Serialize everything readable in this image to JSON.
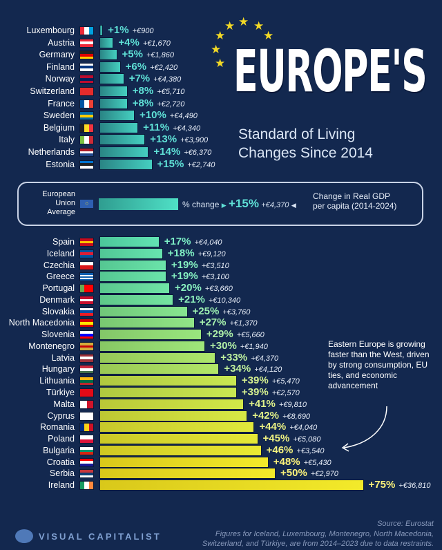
{
  "title": {
    "main": "EUROPE'S",
    "line1": "Standard of Living",
    "line2": "Changes Since 2014"
  },
  "eu_average": {
    "label_lines": [
      "European",
      "Union",
      "Average"
    ],
    "pct_label": "% change",
    "pct": 15,
    "pct_text": "+15%",
    "eur": "+€4,370",
    "legend_lines": [
      "Change in Real GDP",
      "per capita (2014-2024)"
    ],
    "flag_color": "#2e5fb0"
  },
  "note": "Eastern Europe is growing faster than the West, driven by strong consumption, EU ties, and economic advancement",
  "source": "Source: Eurostat",
  "footnote_lines": [
    "Figures for Iceland, Luxembourg, Montenegro, North Macedonia,",
    "Switzerland, and Türkiye, are from 2014–2023 due to data restraints."
  ],
  "brand": "VISUAL CAPITALIST",
  "chart_data": {
    "type": "bar",
    "orientation": "horizontal",
    "title": "Europe's Standard of Living Changes Since 2014",
    "xlabel": "% change in Real GDP per capita (2014-2024)",
    "groups": [
      {
        "name": "below_eu",
        "rows": [
          {
            "country": "Luxembourg",
            "pct": 1,
            "eur": "+€900",
            "flag": [
              "v",
              "#ed2939",
              "#ffffff",
              "#00a1de"
            ]
          },
          {
            "country": "Austria",
            "pct": 4,
            "eur": "+€1,670",
            "flag": [
              "h",
              "#ed2939",
              "#ffffff",
              "#ed2939"
            ]
          },
          {
            "country": "Germany",
            "pct": 5,
            "eur": "+€1,860",
            "flag": [
              "h",
              "#222222",
              "#dd0000",
              "#ffce00"
            ]
          },
          {
            "country": "Finland",
            "pct": 6,
            "eur": "+€2,420",
            "flag": [
              "h",
              "#ffffff",
              "#003580",
              "#ffffff"
            ]
          },
          {
            "country": "Norway",
            "pct": 7,
            "eur": "+€4,380",
            "flag": [
              "h",
              "#ba0c2f",
              "#00205b",
              "#ba0c2f"
            ]
          },
          {
            "country": "Switzerland",
            "pct": 8,
            "eur": "+€5,710",
            "flag": [
              "h",
              "#e52b2b"
            ]
          },
          {
            "country": "France",
            "pct": 8,
            "eur": "+€2,720",
            "flag": [
              "v",
              "#0055a4",
              "#ffffff",
              "#ef4135"
            ]
          },
          {
            "country": "Sweden",
            "pct": 10,
            "eur": "+€4,490",
            "flag": [
              "h",
              "#006aa7",
              "#fecc00",
              "#006aa7"
            ]
          },
          {
            "country": "Belgium",
            "pct": 11,
            "eur": "+€4,340",
            "flag": [
              "v",
              "#222222",
              "#fdda24",
              "#ef3340"
            ]
          },
          {
            "country": "Italy",
            "pct": 13,
            "eur": "+€3,900",
            "flag": [
              "v",
              "#7cc242",
              "#ffffff",
              "#ce2b37"
            ]
          },
          {
            "country": "Netherlands",
            "pct": 14,
            "eur": "+€6,370",
            "flag": [
              "h",
              "#ae1c28",
              "#ffffff",
              "#21468b"
            ]
          },
          {
            "country": "Estonia",
            "pct": 15,
            "eur": "+€2,740",
            "flag": [
              "h",
              "#0072ce",
              "#222222",
              "#ffffff"
            ]
          }
        ]
      },
      {
        "name": "above_eu",
        "rows": [
          {
            "country": "Spain",
            "pct": 17,
            "eur": "+€4,040",
            "flag": [
              "h",
              "#c60b1e",
              "#ffc400",
              "#c60b1e"
            ]
          },
          {
            "country": "Iceland",
            "pct": 18,
            "eur": "+€9,120",
            "flag": [
              "h",
              "#02529c",
              "#dc1e35",
              "#02529c"
            ]
          },
          {
            "country": "Czechia",
            "pct": 19,
            "eur": "+€3,510",
            "flag": [
              "h",
              "#ffffff",
              "#d7141a"
            ]
          },
          {
            "country": "Greece",
            "pct": 19,
            "eur": "+€3,100",
            "flag": [
              "h",
              "#0d5eaf",
              "#ffffff",
              "#0d5eaf",
              "#ffffff",
              "#0d5eaf"
            ]
          },
          {
            "country": "Portugal",
            "pct": 20,
            "eur": "+€3,660",
            "flag": [
              "v",
              "#6aa84f",
              "#ff0000",
              "#ff0000"
            ]
          },
          {
            "country": "Denmark",
            "pct": 21,
            "eur": "+€10,340",
            "flag": [
              "h",
              "#c8102e",
              "#ffffff",
              "#c8102e"
            ]
          },
          {
            "country": "Slovakia",
            "pct": 25,
            "eur": "+€3,760",
            "flag": [
              "h",
              "#ffffff",
              "#0b4ea2",
              "#ee1c25"
            ]
          },
          {
            "country": "North Macedonia",
            "pct": 27,
            "eur": "+€1,370",
            "flag": [
              "h",
              "#d20000",
              "#ffe600",
              "#d20000"
            ]
          },
          {
            "country": "Slovenia",
            "pct": 29,
            "eur": "+€5,660",
            "flag": [
              "h",
              "#ffffff",
              "#0000ff",
              "#ff0000"
            ]
          },
          {
            "country": "Montenegro",
            "pct": 30,
            "eur": "+€1,940",
            "flag": [
              "h",
              "#d3ae3b",
              "#c40308",
              "#d3ae3b"
            ]
          },
          {
            "country": "Latvia",
            "pct": 33,
            "eur": "+€4,370",
            "flag": [
              "h",
              "#9e3039",
              "#ffffff",
              "#9e3039"
            ]
          },
          {
            "country": "Hungary",
            "pct": 34,
            "eur": "+€4,120",
            "flag": [
              "h",
              "#cd2a3e",
              "#ffffff",
              "#436f4d"
            ]
          },
          {
            "country": "Lithuania",
            "pct": 39,
            "eur": "+€5,470",
            "flag": [
              "h",
              "#fdb913",
              "#006a44",
              "#c1272d"
            ]
          },
          {
            "country": "Türkiye",
            "pct": 39,
            "eur": "+€2,570",
            "flag": [
              "h",
              "#e30a17"
            ]
          },
          {
            "country": "Malta",
            "pct": 41,
            "eur": "+€9,810",
            "flag": [
              "v",
              "#ffffff",
              "#cf142b"
            ]
          },
          {
            "country": "Cyprus",
            "pct": 42,
            "eur": "+€8,690",
            "flag": [
              "h",
              "#ffffff"
            ]
          },
          {
            "country": "Romania",
            "pct": 44,
            "eur": "+€4,040",
            "flag": [
              "v",
              "#002b7f",
              "#fcd116",
              "#ce1126"
            ]
          },
          {
            "country": "Poland",
            "pct": 45,
            "eur": "+€5,080",
            "flag": [
              "h",
              "#ffffff",
              "#dc143c"
            ]
          },
          {
            "country": "Bulgaria",
            "pct": 46,
            "eur": "+€3,540",
            "flag": [
              "h",
              "#ffffff",
              "#00966e",
              "#d62612"
            ]
          },
          {
            "country": "Croatia",
            "pct": 48,
            "eur": "+€5,430",
            "flag": [
              "h",
              "#ff0000",
              "#ffffff",
              "#171796"
            ]
          },
          {
            "country": "Serbia",
            "pct": 50,
            "eur": "+€2,970",
            "flag": [
              "h",
              "#c6363c",
              "#0c4076",
              "#ffffff"
            ]
          },
          {
            "country": "Ireland",
            "pct": 75,
            "eur": "+€36,810",
            "flag": [
              "v",
              "#169b62",
              "#ffffff",
              "#ff883e"
            ]
          }
        ]
      }
    ]
  }
}
